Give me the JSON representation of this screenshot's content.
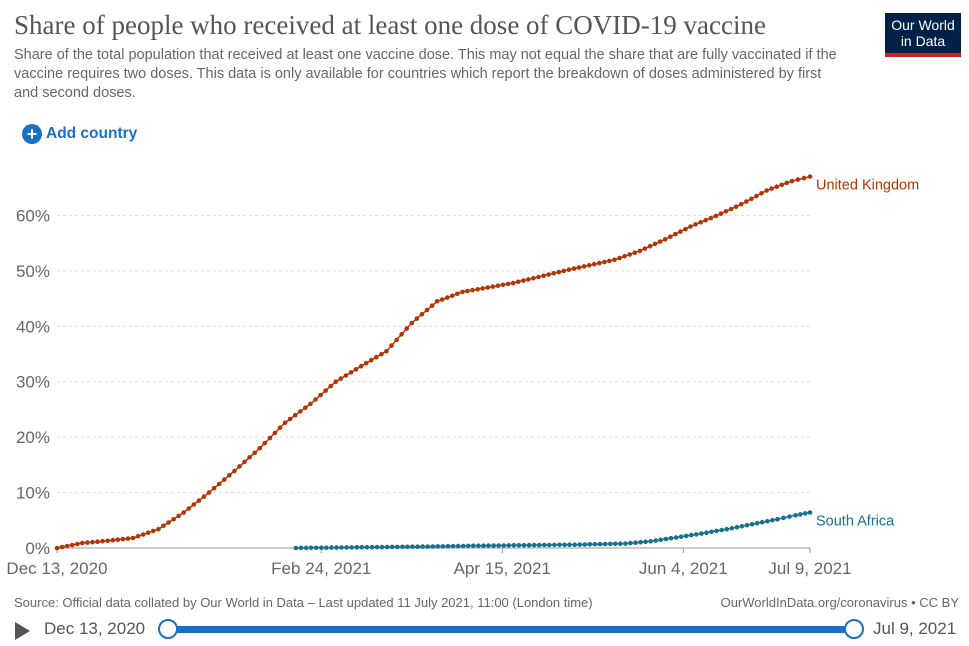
{
  "header": {
    "title": "Share of people who received at least one dose of COVID-19 vaccine",
    "subtitle": "Share of the total population that received at least one vaccine dose. This may not equal the share that are fully vaccinated if the vaccine requires two doses. This data is only available for countries which report the breakdown of doses administered by first and second doses.",
    "logo_line1": "Our World",
    "logo_line2": "in Data",
    "logo_color": "#002147",
    "logo_accent": "#ce261e"
  },
  "controls": {
    "add_country_label": "Add country",
    "add_country_icon": "plus-circle-icon"
  },
  "footer": {
    "source": "Source: Official data collated by Our World in Data – Last updated 11 July 2021, 11:00 (London time)",
    "credit": "OurWorldInData.org/coronavirus • CC BY"
  },
  "timeline": {
    "start_label": "Dec 13, 2020",
    "end_label": "Jul 9, 2021",
    "play_icon": "play-icon"
  },
  "chart_data": {
    "type": "line",
    "title": "Share of people who received at least one dose of COVID-19 vaccine",
    "xlabel": "",
    "ylabel": "",
    "x_range": [
      "2020-12-13",
      "2021-07-09"
    ],
    "ylim": [
      0,
      70
    ],
    "y_ticks": [
      0,
      10,
      20,
      30,
      40,
      50,
      60
    ],
    "y_tick_labels": [
      "0%",
      "10%",
      "20%",
      "30%",
      "40%",
      "50%",
      "60%"
    ],
    "x_ticks": [
      "2020-12-13",
      "2021-02-24",
      "2021-04-15",
      "2021-06-04",
      "2021-07-09"
    ],
    "x_tick_labels": [
      "Dec 13, 2020",
      "Feb 24, 2021",
      "Apr 15, 2021",
      "Jun 4, 2021",
      "Jul 9, 2021"
    ],
    "grid": "horizontal-dashed",
    "legend": "inline-right",
    "series": [
      {
        "name": "United Kingdom",
        "color": "#b13507",
        "points": [
          [
            "2020-12-13",
            0.0
          ],
          [
            "2020-12-20",
            0.9
          ],
          [
            "2020-12-27",
            1.3
          ],
          [
            "2021-01-03",
            1.8
          ],
          [
            "2021-01-10",
            3.4
          ],
          [
            "2021-01-17",
            6.4
          ],
          [
            "2021-01-24",
            10.0
          ],
          [
            "2021-01-31",
            13.9
          ],
          [
            "2021-02-07",
            18.0
          ],
          [
            "2021-02-14",
            22.6
          ],
          [
            "2021-02-21",
            26.0
          ],
          [
            "2021-02-28",
            30.0
          ],
          [
            "2021-03-07",
            32.8
          ],
          [
            "2021-03-14",
            35.5
          ],
          [
            "2021-03-21",
            40.6
          ],
          [
            "2021-03-28",
            44.5
          ],
          [
            "2021-04-04",
            46.2
          ],
          [
            "2021-04-11",
            47.0
          ],
          [
            "2021-04-18",
            47.8
          ],
          [
            "2021-04-25",
            48.9
          ],
          [
            "2021-05-02",
            50.0
          ],
          [
            "2021-05-09",
            51.0
          ],
          [
            "2021-05-16",
            52.0
          ],
          [
            "2021-05-23",
            53.6
          ],
          [
            "2021-05-30",
            55.7
          ],
          [
            "2021-06-06",
            58.0
          ],
          [
            "2021-06-13",
            59.9
          ],
          [
            "2021-06-20",
            62.0
          ],
          [
            "2021-06-27",
            64.5
          ],
          [
            "2021-07-04",
            66.2
          ],
          [
            "2021-07-09",
            67.0
          ]
        ]
      },
      {
        "name": "South Africa",
        "color": "#18708f",
        "points": [
          [
            "2021-02-17",
            0.0
          ],
          [
            "2021-02-24",
            0.05
          ],
          [
            "2021-03-03",
            0.1
          ],
          [
            "2021-03-10",
            0.15
          ],
          [
            "2021-03-17",
            0.2
          ],
          [
            "2021-03-24",
            0.25
          ],
          [
            "2021-03-31",
            0.3
          ],
          [
            "2021-04-07",
            0.4
          ],
          [
            "2021-04-14",
            0.45
          ],
          [
            "2021-04-21",
            0.5
          ],
          [
            "2021-04-28",
            0.55
          ],
          [
            "2021-05-05",
            0.6
          ],
          [
            "2021-05-12",
            0.7
          ],
          [
            "2021-05-19",
            0.8
          ],
          [
            "2021-05-26",
            1.2
          ],
          [
            "2021-06-02",
            1.9
          ],
          [
            "2021-06-09",
            2.6
          ],
          [
            "2021-06-16",
            3.4
          ],
          [
            "2021-06-23",
            4.3
          ],
          [
            "2021-06-30",
            5.2
          ],
          [
            "2021-07-05",
            5.9
          ],
          [
            "2021-07-09",
            6.4
          ]
        ]
      }
    ]
  }
}
